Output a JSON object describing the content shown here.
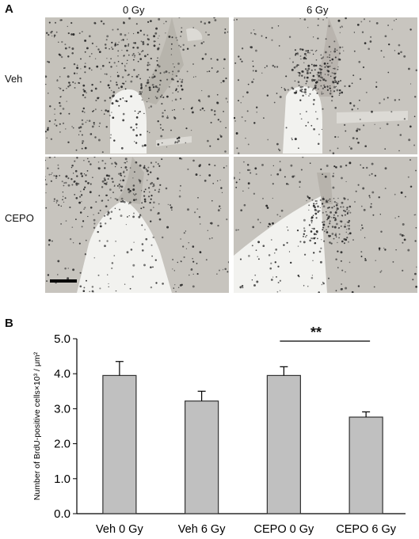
{
  "panel_a": {
    "letter": "A",
    "columns": [
      "0 Gy",
      "6 Gy"
    ],
    "rows": [
      "Veh",
      "CEPO"
    ]
  },
  "panel_b": {
    "letter": "B",
    "significance": "**"
  },
  "chart_data": {
    "type": "bar",
    "categories": [
      "Veh 0 Gy",
      "Veh 6 Gy",
      "CEPO 0 Gy",
      "CEPO 6 Gy"
    ],
    "values": [
      3.95,
      3.22,
      3.95,
      2.76
    ],
    "errors": [
      0.4,
      0.28,
      0.25,
      0.15
    ],
    "ylabel": "Number of BrdU-positive cells×10³ / μm²",
    "ylim": [
      0,
      5
    ],
    "yticks": [
      "0.0",
      "1.0",
      "2.0",
      "3.0",
      "4.0",
      "5.0"
    ],
    "bar_color": "#c0c0c0",
    "significance_between": [
      "CEPO 0 Gy",
      "CEPO 6 Gy"
    ]
  }
}
